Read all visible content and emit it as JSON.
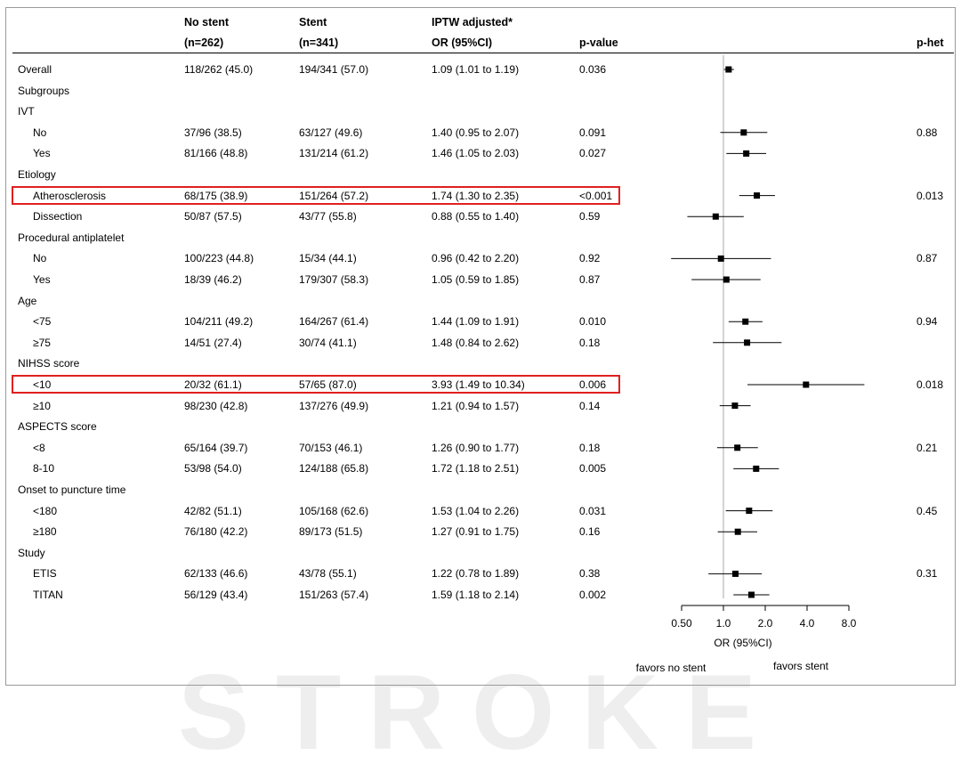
{
  "header": {
    "no_stent": "No stent",
    "no_stent_n": "(n=262)",
    "stent": "Stent",
    "stent_n": "(n=341)",
    "iptw": "IPTW adjusted*",
    "or_label": "OR (95%CI)",
    "pvalue": "p-value",
    "phet": "p-het"
  },
  "rows": [
    {
      "label": "Overall",
      "indent": false,
      "no_stent": "118/262 (45.0)",
      "stent": "194/341 (57.0)",
      "or_text": "1.09 (1.01 to 1.19)",
      "p": "0.036",
      "phet": "",
      "highlight": false
    },
    {
      "label": "Subgroups",
      "indent": false,
      "no_stent": "",
      "stent": "",
      "or_text": "",
      "p": "",
      "phet": "",
      "highlight": false
    },
    {
      "label": "IVT",
      "indent": false,
      "no_stent": "",
      "stent": "",
      "or_text": "",
      "p": "",
      "phet": "",
      "highlight": false
    },
    {
      "label": "No",
      "indent": true,
      "no_stent": "37/96 (38.5)",
      "stent": "63/127 (49.6)",
      "or_text": "1.40 (0.95 to 2.07)",
      "p": "0.091",
      "phet": "0.88",
      "highlight": false
    },
    {
      "label": "Yes",
      "indent": true,
      "no_stent": "81/166 (48.8)",
      "stent": "131/214 (61.2)",
      "or_text": "1.46 (1.05 to 2.03)",
      "p": "0.027",
      "phet": "",
      "highlight": false
    },
    {
      "label": "Etiology",
      "indent": false,
      "no_stent": "",
      "stent": "",
      "or_text": "",
      "p": "",
      "phet": "",
      "highlight": false
    },
    {
      "label": "Atherosclerosis",
      "indent": true,
      "no_stent": "68/175 (38.9)",
      "stent": "151/264 (57.2)",
      "or_text": "1.74 (1.30 to 2.35)",
      "p": "<0.001",
      "phet": "0.013",
      "highlight": true
    },
    {
      "label": "Dissection",
      "indent": true,
      "no_stent": "50/87 (57.5)",
      "stent": "43/77 (55.8)",
      "or_text": "0.88 (0.55 to 1.40)",
      "p": "0.59",
      "phet": "",
      "highlight": false
    },
    {
      "label": "Procedural antiplatelet",
      "indent": false,
      "no_stent": "",
      "stent": "",
      "or_text": "",
      "p": "",
      "phet": "",
      "highlight": false
    },
    {
      "label": "No",
      "indent": true,
      "no_stent": "100/223 (44.8)",
      "stent": "15/34 (44.1)",
      "or_text": "0.96 (0.42 to 2.20)",
      "p": "0.92",
      "phet": "0.87",
      "highlight": false
    },
    {
      "label": "Yes",
      "indent": true,
      "no_stent": "18/39 (46.2)",
      "stent": "179/307 (58.3)",
      "or_text": "1.05 (0.59 to 1.85)",
      "p": "0.87",
      "phet": "",
      "highlight": false
    },
    {
      "label": "Age",
      "indent": false,
      "no_stent": "",
      "stent": "",
      "or_text": "",
      "p": "",
      "phet": "",
      "highlight": false
    },
    {
      "label": "<75",
      "indent": true,
      "no_stent": "104/211 (49.2)",
      "stent": "164/267 (61.4)",
      "or_text": "1.44 (1.09 to 1.91)",
      "p": "0.010",
      "phet": "0.94",
      "highlight": false
    },
    {
      "label": "≥75",
      "indent": true,
      "no_stent": "14/51 (27.4)",
      "stent": "30/74 (41.1)",
      "or_text": "1.48 (0.84 to 2.62)",
      "p": "0.18",
      "phet": "",
      "highlight": false
    },
    {
      "label": "NIHSS score",
      "indent": false,
      "no_stent": "",
      "stent": "",
      "or_text": "",
      "p": "",
      "phet": "",
      "highlight": false
    },
    {
      "label": "<10",
      "indent": true,
      "no_stent": "20/32 (61.1)",
      "stent": "57/65 (87.0)",
      "or_text": "3.93 (1.49 to 10.34)",
      "p": "0.006",
      "phet": "0.018",
      "highlight": true
    },
    {
      "label": "≥10",
      "indent": true,
      "no_stent": "98/230 (42.8)",
      "stent": "137/276 (49.9)",
      "or_text": "1.21 (0.94 to 1.57)",
      "p": "0.14",
      "phet": "",
      "highlight": false
    },
    {
      "label": "ASPECTS score",
      "indent": false,
      "no_stent": "",
      "stent": "",
      "or_text": "",
      "p": "",
      "phet": "",
      "highlight": false
    },
    {
      "label": "<8",
      "indent": true,
      "no_stent": "65/164 (39.7)",
      "stent": "70/153 (46.1)",
      "or_text": "1.26 (0.90 to 1.77)",
      "p": "0.18",
      "phet": "0.21",
      "highlight": false
    },
    {
      "label": "8-10",
      "indent": true,
      "no_stent": "53/98 (54.0)",
      "stent": "124/188 (65.8)",
      "or_text": "1.72 (1.18 to 2.51)",
      "p": "0.005",
      "phet": "",
      "highlight": false
    },
    {
      "label": "Onset to puncture time",
      "indent": false,
      "no_stent": "",
      "stent": "",
      "or_text": "",
      "p": "",
      "phet": "",
      "highlight": false
    },
    {
      "label": "<180",
      "indent": true,
      "no_stent": "42/82 (51.1)",
      "stent": "105/168 (62.6)",
      "or_text": "1.53 (1.04 to 2.26)",
      "p": "0.031",
      "phet": "0.45",
      "highlight": false
    },
    {
      "label": "≥180",
      "indent": true,
      "no_stent": "76/180 (42.2)",
      "stent": "89/173 (51.5)",
      "or_text": "1.27 (0.91 to 1.75)",
      "p": "0.16",
      "phet": "",
      "highlight": false
    },
    {
      "label": "Study",
      "indent": false,
      "no_stent": "",
      "stent": "",
      "or_text": "",
      "p": "",
      "phet": "",
      "highlight": false
    },
    {
      "label": "ETIS",
      "indent": true,
      "no_stent": "62/133 (46.6)",
      "stent": "43/78 (55.1)",
      "or_text": "1.22 (0.78 to 1.89)",
      "p": "0.38",
      "phet": "0.31",
      "highlight": false
    },
    {
      "label": "TITAN",
      "indent": true,
      "no_stent": "56/129 (43.4)",
      "stent": "151/263 (57.4)",
      "or_text": "1.59 (1.18 to 2.14)",
      "p": "0.002",
      "phet": "",
      "highlight": false
    }
  ],
  "chart_data": {
    "type": "scatter",
    "subtype": "forest",
    "xscale": "log2",
    "xlim": [
      0.5,
      8.0
    ],
    "xticks": [
      0.5,
      1.0,
      2.0,
      4.0,
      8.0
    ],
    "xtick_labels": [
      "0.50",
      "1.0",
      "2.0",
      "4.0",
      "8.0"
    ],
    "xlabel": "OR (95%CI)",
    "reference_line": 1.0,
    "favors_left": "favors no stent",
    "favors_right": "favors stent",
    "estimates": [
      {
        "row": "Overall",
        "or": 1.09,
        "lo": 1.01,
        "hi": 1.19
      },
      {
        "row": "IVT: No",
        "or": 1.4,
        "lo": 0.95,
        "hi": 2.07
      },
      {
        "row": "IVT: Yes",
        "or": 1.46,
        "lo": 1.05,
        "hi": 2.03
      },
      {
        "row": "Etiology: Atherosclerosis",
        "or": 1.74,
        "lo": 1.3,
        "hi": 2.35
      },
      {
        "row": "Etiology: Dissection",
        "or": 0.88,
        "lo": 0.55,
        "hi": 1.4
      },
      {
        "row": "Procedural antiplatelet: No",
        "or": 0.96,
        "lo": 0.42,
        "hi": 2.2
      },
      {
        "row": "Procedural antiplatelet: Yes",
        "or": 1.05,
        "lo": 0.59,
        "hi": 1.85
      },
      {
        "row": "Age: <75",
        "or": 1.44,
        "lo": 1.09,
        "hi": 1.91
      },
      {
        "row": "Age: ≥75",
        "or": 1.48,
        "lo": 0.84,
        "hi": 2.62
      },
      {
        "row": "NIHSS score: <10",
        "or": 3.93,
        "lo": 1.49,
        "hi": 10.34
      },
      {
        "row": "NIHSS score: ≥10",
        "or": 1.21,
        "lo": 0.94,
        "hi": 1.57
      },
      {
        "row": "ASPECTS score: <8",
        "or": 1.26,
        "lo": 0.9,
        "hi": 1.77
      },
      {
        "row": "ASPECTS score: 8-10",
        "or": 1.72,
        "lo": 1.18,
        "hi": 2.51
      },
      {
        "row": "Onset to puncture time: <180",
        "or": 1.53,
        "lo": 1.04,
        "hi": 2.26
      },
      {
        "row": "Onset to puncture time: ≥180",
        "or": 1.27,
        "lo": 0.91,
        "hi": 1.75
      },
      {
        "row": "Study: ETIS",
        "or": 1.22,
        "lo": 0.78,
        "hi": 1.89
      },
      {
        "row": "Study: TITAN",
        "or": 1.59,
        "lo": 1.18,
        "hi": 2.14
      }
    ]
  },
  "watermark": "STROKE"
}
